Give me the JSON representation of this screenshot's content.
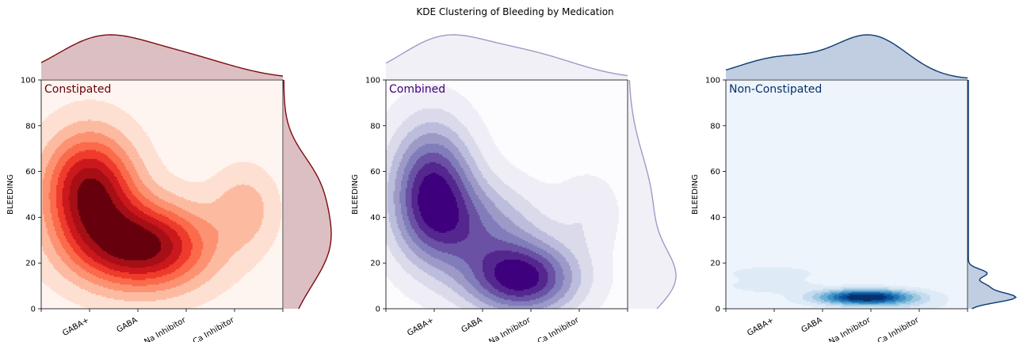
{
  "title": "KDE Clustering of Bleeding by Medication",
  "chart_data": [
    {
      "type": "kde-contour",
      "panel_label": "Constipated",
      "ylabel": "BLEEDING",
      "xlabel": "",
      "categories": [
        "GABA+",
        "GABA",
        "Na Inhibitor",
        "Ca Inhibitor"
      ],
      "ylim": [
        0,
        100
      ],
      "yticks": [
        0,
        20,
        40,
        60,
        80,
        100
      ],
      "cmap": [
        "#fff5f0",
        "#fee0d2",
        "#fcbba1",
        "#fc9272",
        "#fb6a4a",
        "#ef3b2c",
        "#cb181d",
        "#a50f15",
        "#67000d"
      ],
      "label_color": "#67000d",
      "marginal_color": "#7f0a0f",
      "marginal_fill": "#dcbfc3",
      "components": [
        {
          "x": 1.0,
          "y": 52,
          "sx": 0.65,
          "sy": 17,
          "w": 1.0
        },
        {
          "x": 2.1,
          "y": 27,
          "sx": 0.95,
          "sy": 13,
          "w": 1.05
        },
        {
          "x": 4.2,
          "y": 44,
          "sx": 0.45,
          "sy": 12,
          "w": 0.28
        }
      ],
      "x_marginal": [
        {
          "x": 1.15,
          "sx": 0.9,
          "w": 1.0
        },
        {
          "x": 2.8,
          "sx": 1.1,
          "w": 0.65
        }
      ],
      "y_marginal": [
        {
          "y": 30,
          "sx": 20,
          "w": 1.0
        },
        {
          "y": 58,
          "sx": 12,
          "w": 0.35
        }
      ]
    },
    {
      "type": "kde-contour",
      "panel_label": "Combined",
      "ylabel": "BLEEDING",
      "xlabel": "",
      "categories": [
        "GABA+",
        "GABA",
        "Na Inhibitor",
        "Ca Inhibitor"
      ],
      "ylim": [
        0,
        100
      ],
      "yticks": [
        0,
        20,
        40,
        60,
        80,
        100
      ],
      "cmap": [
        "#fcfbfd",
        "#efedf5",
        "#dadaeb",
        "#bcbddc",
        "#9e9ac8",
        "#807dba",
        "#6a51a3",
        "#54278f",
        "#3f007d"
      ],
      "label_color": "#3f007d",
      "marginal_color": "#9e9ac8",
      "marginal_fill": "#f2f0f7",
      "components": [
        {
          "x": 0.95,
          "y": 52,
          "sx": 0.6,
          "sy": 20,
          "w": 0.95
        },
        {
          "x": 2.8,
          "y": 13,
          "sx": 0.8,
          "sy": 11,
          "w": 1.0
        },
        {
          "x": 1.9,
          "y": 35,
          "sx": 0.9,
          "sy": 14,
          "w": 0.5
        },
        {
          "x": 4.2,
          "y": 42,
          "sx": 0.45,
          "sy": 12,
          "w": 0.16
        }
      ],
      "x_marginal": [
        {
          "x": 1.1,
          "sx": 0.85,
          "w": 1.0
        },
        {
          "x": 2.8,
          "sx": 1.1,
          "w": 0.75
        }
      ],
      "y_marginal": [
        {
          "y": 12,
          "sx": 13,
          "w": 1.0
        },
        {
          "y": 45,
          "sx": 22,
          "w": 0.6
        }
      ]
    },
    {
      "type": "kde-contour",
      "panel_label": "Non-Constipated",
      "ylabel": "BLEEDING",
      "xlabel": "",
      "categories": [
        "GABA+",
        "GABA",
        "Na Inhibitor",
        "Ca Inhibitor"
      ],
      "ylim": [
        0,
        100
      ],
      "yticks": [
        0,
        20,
        40,
        60,
        80,
        100
      ],
      "cmap": [
        "#eef4fb",
        "#deebf7",
        "#c6dbef",
        "#9ecae1",
        "#6baed6",
        "#4292c6",
        "#2171b5",
        "#08519c",
        "#08306b"
      ],
      "label_color": "#08306b",
      "marginal_color": "#0b3a73",
      "marginal_fill": "#c1cde0",
      "components": [
        {
          "x": 2.9,
          "y": 5,
          "sx": 0.7,
          "sy": 2.3,
          "w": 1.0
        },
        {
          "x": 0.95,
          "y": 15.5,
          "sx": 0.6,
          "sy": 2.0,
          "w": 0.14
        },
        {
          "x": 0.95,
          "y": 10,
          "sx": 0.6,
          "sy": 2.0,
          "w": 0.14
        },
        {
          "x": 3.8,
          "y": 1,
          "sx": 0.6,
          "sy": 2.0,
          "w": 0.08
        }
      ],
      "x_marginal": [
        {
          "x": 3.0,
          "sx": 0.75,
          "w": 1.0
        },
        {
          "x": 1.1,
          "sx": 0.85,
          "w": 0.5
        }
      ],
      "y_marginal": [
        {
          "y": 5,
          "sx": 2.2,
          "w": 1.0
        },
        {
          "y": 15.5,
          "sx": 1.8,
          "w": 0.4
        },
        {
          "y": 10,
          "sx": 1.8,
          "w": 0.35
        }
      ]
    }
  ]
}
